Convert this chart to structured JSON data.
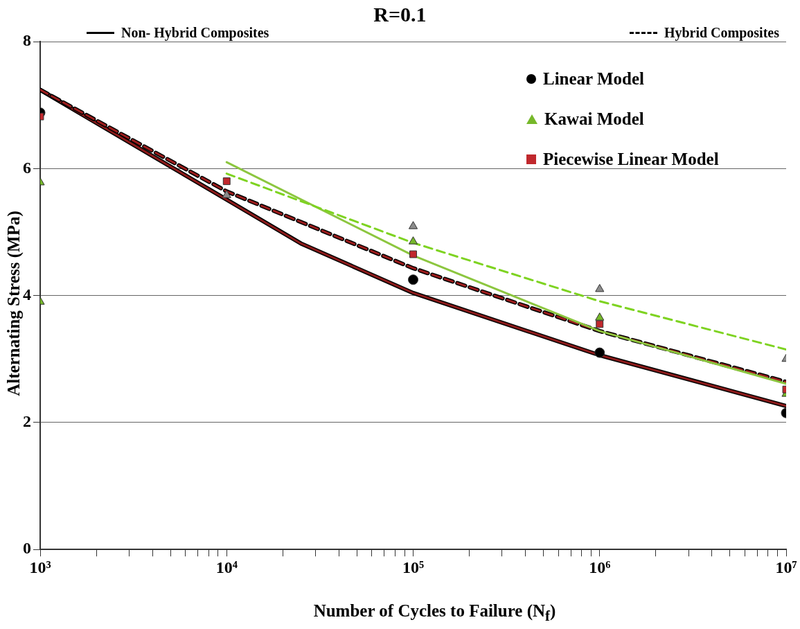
{
  "chart_data": {
    "type": "line",
    "title": "R=0.1",
    "xlabel": "Number of Cycles to Failure (N$_{f}$)",
    "ylabel": "Alternating Stress (MPa)",
    "log": "x",
    "grid": "y",
    "legend": "top right",
    "xlim": [
      1000,
      10000000
    ],
    "ylim": [
      0,
      8
    ],
    "yticks": [
      0,
      2,
      4,
      6,
      8
    ],
    "xticks": [
      {
        "value": 1000,
        "label": "10³"
      },
      {
        "value": 2000,
        "label": null
      },
      {
        "value": 3000,
        "label": null
      },
      {
        "value": 4000,
        "label": null
      },
      {
        "value": 5000,
        "label": null
      },
      {
        "value": 6000,
        "label": null
      },
      {
        "value": 7000,
        "label": null
      },
      {
        "value": 8000,
        "label": null
      },
      {
        "value": 9000,
        "label": null
      },
      {
        "value": 10000,
        "label": "10⁴"
      },
      {
        "value": 20000,
        "label": null
      },
      {
        "value": 30000,
        "label": null
      },
      {
        "value": 40000,
        "label": null
      },
      {
        "value": 50000,
        "label": null
      },
      {
        "value": 60000,
        "label": null
      },
      {
        "value": 70000,
        "label": null
      },
      {
        "value": 80000,
        "label": null
      },
      {
        "value": 90000,
        "label": null
      },
      {
        "value": 100000,
        "label": "10⁵"
      },
      {
        "value": 200000,
        "label": null
      },
      {
        "value": 300000,
        "label": null
      },
      {
        "value": 400000,
        "label": null
      },
      {
        "value": 500000,
        "label": null
      },
      {
        "value": 600000,
        "label": null
      },
      {
        "value": 700000,
        "label": null
      },
      {
        "value": 800000,
        "label": null
      },
      {
        "value": 900000,
        "label": null
      },
      {
        "value": 1000000,
        "label": "10⁶"
      },
      {
        "value": 2000000,
        "label": null
      },
      {
        "value": 3000000,
        "label": null
      },
      {
        "value": 4000000,
        "label": null
      },
      {
        "value": 5000000,
        "label": null
      },
      {
        "value": 6000000,
        "label": null
      },
      {
        "value": 7000000,
        "label": null
      },
      {
        "value": 8000000,
        "label": null
      },
      {
        "value": 9000000,
        "label": null
      },
      {
        "value": 10000000,
        "label": "10⁷"
      }
    ],
    "series": [
      {
        "name": "Non- Hybrid Composites",
        "line_style": "solid",
        "marker": "none",
        "color": "#000000",
        "x": [
          1000,
          10000,
          25000,
          100000,
          1000000,
          10000000
        ],
        "values": [
          7.24,
          5.51,
          4.82,
          4.04,
          3.06,
          2.26
        ]
      },
      {
        "line_style": "solid",
        "marker": "none",
        "color": "#8b1a1a",
        "x": [
          1000,
          10000,
          25000,
          100000,
          1000000,
          10000000
        ],
        "values": [
          7.24,
          5.51,
          4.82,
          4.04,
          3.06,
          2.26
        ]
      },
      {
        "name": "Hybrid Composites",
        "line_style": "dashed",
        "marker": "none",
        "color": "#000000",
        "x": [
          1000,
          10000,
          100000,
          1000000,
          10000000
        ],
        "values": [
          7.24,
          5.64,
          4.43,
          3.44,
          2.64
        ]
      },
      {
        "line_style": "dashed",
        "marker": "none",
        "color": "#9b1c1c",
        "x": [
          1000,
          10000,
          100000,
          1000000,
          10000000
        ],
        "values": [
          7.24,
          5.64,
          4.43,
          3.44,
          2.64
        ]
      },
      {
        "line_style": "solid",
        "marker": "none",
        "color": "#8cc63f",
        "x": [
          10000,
          100000,
          1000000,
          10000000
        ],
        "values": [
          6.1,
          4.63,
          3.44,
          2.61
        ]
      },
      {
        "line_style": "dashed",
        "marker": "none",
        "color": "#7ed321",
        "x": [
          10000,
          100000,
          1000000,
          10000000
        ],
        "values": [
          5.92,
          4.83,
          3.91,
          3.15
        ]
      },
      {
        "type": "scatter",
        "marker": "triangle",
        "color": "#8c8c8c",
        "x": [
          10000,
          100000,
          1000000,
          10000000
        ],
        "values": [
          5.58,
          5.09,
          4.1,
          3.0
        ]
      },
      {
        "name": "Linear Model",
        "type": "scatter",
        "marker": "circle",
        "color": "#000000",
        "x": [
          1000,
          100000,
          1000000,
          10000000
        ],
        "values": [
          6.88,
          4.25,
          3.1,
          2.15
        ]
      },
      {
        "name": "Kawai Model",
        "type": "scatter",
        "marker": "triangle",
        "color": "#76b82a",
        "x": [
          1000,
          1000,
          100000,
          1000000,
          10000000
        ],
        "values": [
          5.78,
          3.9,
          4.85,
          3.65,
          2.45
        ]
      },
      {
        "name": "Piecewise Linear Model",
        "type": "scatter",
        "marker": "square",
        "color": "#c0282d",
        "x": [
          1000,
          10000,
          100000,
          1000000,
          10000000
        ],
        "values": [
          6.82,
          5.8,
          4.65,
          3.55,
          2.52
        ]
      }
    ]
  }
}
